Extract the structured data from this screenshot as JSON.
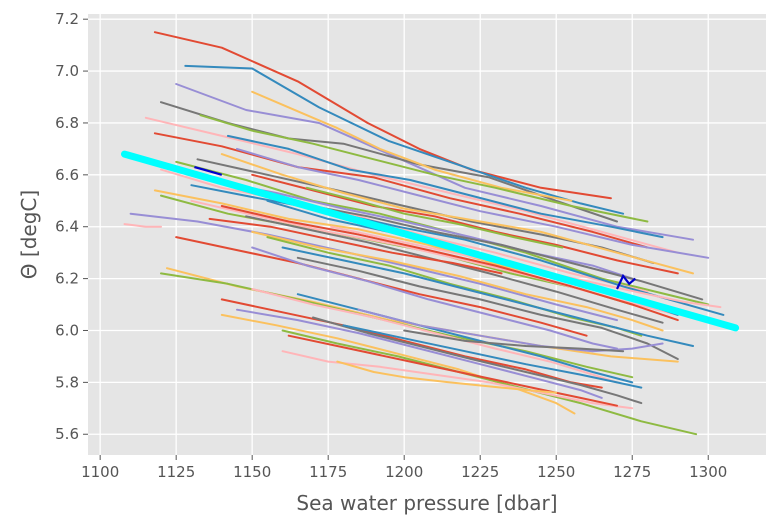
{
  "chart_data": {
    "type": "line",
    "title": "",
    "xlabel": "Sea water pressure [dbar]",
    "ylabel": "Θ [degC]",
    "xlim": [
      1096,
      1319
    ],
    "ylim": [
      5.52,
      7.22
    ],
    "xticks": [
      1100,
      1125,
      1150,
      1175,
      1200,
      1225,
      1250,
      1275,
      1300
    ],
    "yticks": [
      5.6,
      5.8,
      6.0,
      6.2,
      6.4,
      6.6,
      6.8,
      7.0,
      7.2
    ],
    "xtick_labels": [
      "1100",
      "1125",
      "1150",
      "1175",
      "1200",
      "1225",
      "1250",
      "1275",
      "1300"
    ],
    "ytick_labels": [
      "5.6",
      "5.8",
      "6.0",
      "6.2",
      "6.4",
      "6.6",
      "6.8",
      "7.0",
      "7.2"
    ],
    "grid": true,
    "style": "ggplot",
    "colors": {
      "background": "#e5e5e5",
      "grid": "#ffffff",
      "fit_line": "#00ffff",
      "highlight": "#0000cc",
      "cycle": [
        "#e24a33",
        "#348abd",
        "#988ed5",
        "#777777",
        "#fbc15e",
        "#8eba42",
        "#ffb5b8"
      ]
    },
    "fit_line": {
      "name": "",
      "x": [
        1108,
        1309
      ],
      "y": [
        6.68,
        6.01
      ]
    },
    "series": [
      {
        "x": [
          1118,
          1140,
          1165,
          1188,
          1205,
          1222,
          1245,
          1268
        ],
        "y": [
          7.15,
          7.09,
          6.96,
          6.8,
          6.7,
          6.62,
          6.55,
          6.51
        ]
      },
      {
        "x": [
          1128,
          1150,
          1172,
          1195,
          1220,
          1240,
          1258,
          1272
        ],
        "y": [
          7.02,
          7.01,
          6.86,
          6.73,
          6.63,
          6.55,
          6.49,
          6.45
        ]
      },
      {
        "x": [
          1125,
          1148,
          1172,
          1195,
          1220,
          1245,
          1270,
          1295
        ],
        "y": [
          6.95,
          6.85,
          6.8,
          6.68,
          6.55,
          6.48,
          6.4,
          6.35
        ]
      },
      {
        "x": [
          1120,
          1142,
          1162,
          1180,
          1205,
          1228,
          1250,
          1270
        ],
        "y": [
          6.88,
          6.8,
          6.74,
          6.72,
          6.64,
          6.59,
          6.5,
          6.42
        ]
      },
      {
        "x": [
          1150,
          1160,
          1170,
          1178,
          1192,
          1210,
          1232,
          1255
        ],
        "y": [
          6.92,
          6.87,
          6.82,
          6.78,
          6.7,
          6.62,
          6.55,
          6.5
        ]
      },
      {
        "x": [
          1133,
          1150,
          1170,
          1190,
          1210,
          1230,
          1255,
          1280
        ],
        "y": [
          6.83,
          6.77,
          6.72,
          6.66,
          6.6,
          6.55,
          6.48,
          6.42
        ]
      },
      {
        "x": [
          1115,
          1140,
          1165,
          1190,
          1215,
          1240,
          1265,
          1290
        ],
        "y": [
          6.82,
          6.75,
          6.68,
          6.6,
          6.53,
          6.46,
          6.38,
          6.3
        ]
      },
      {
        "x": [
          1118,
          1140,
          1165,
          1190,
          1215,
          1238,
          1262,
          1280
        ],
        "y": [
          6.76,
          6.71,
          6.63,
          6.59,
          6.51,
          6.45,
          6.38,
          6.32
        ]
      },
      {
        "x": [
          1142,
          1162,
          1182,
          1202,
          1222,
          1245,
          1268,
          1285
        ],
        "y": [
          6.75,
          6.7,
          6.62,
          6.58,
          6.52,
          6.45,
          6.4,
          6.36
        ]
      },
      {
        "x": [
          1145,
          1165,
          1185,
          1205,
          1225,
          1250,
          1275,
          1300
        ],
        "y": [
          6.7,
          6.63,
          6.58,
          6.52,
          6.46,
          6.4,
          6.33,
          6.28
        ]
      },
      {
        "x": [
          1132,
          1155,
          1178,
          1200,
          1222,
          1245,
          1265,
          1282
        ],
        "y": [
          6.66,
          6.6,
          6.54,
          6.48,
          6.42,
          6.37,
          6.32,
          6.26
        ]
      },
      {
        "x": [
          1140,
          1160,
          1180,
          1200,
          1220,
          1245,
          1270,
          1295
        ],
        "y": [
          6.68,
          6.6,
          6.53,
          6.47,
          6.43,
          6.38,
          6.3,
          6.22
        ]
      },
      {
        "x": [
          1125,
          1148,
          1170,
          1192,
          1215,
          1240,
          1265,
          1300
        ],
        "y": [
          6.65,
          6.58,
          6.5,
          6.45,
          6.38,
          6.3,
          6.2,
          6.1
        ]
      },
      {
        "x": [
          1120,
          1140,
          1162,
          1185,
          1208,
          1230,
          1255,
          1280
        ],
        "y": [
          6.62,
          6.55,
          6.5,
          6.44,
          6.36,
          6.3,
          6.22,
          6.15
        ]
      },
      {
        "x": [
          1150,
          1170,
          1190,
          1210,
          1230,
          1250,
          1270,
          1290
        ],
        "y": [
          6.6,
          6.54,
          6.48,
          6.44,
          6.38,
          6.33,
          6.27,
          6.22
        ]
      },
      {
        "x": [
          1130,
          1152,
          1175,
          1198,
          1220,
          1245,
          1272,
          1305
        ],
        "y": [
          6.56,
          6.51,
          6.46,
          6.4,
          6.35,
          6.27,
          6.17,
          6.06
        ]
      },
      {
        "x": [
          1135,
          1158,
          1180,
          1200,
          1222,
          1242,
          1262,
          1275
        ],
        "y": [
          6.58,
          6.53,
          6.47,
          6.42,
          6.36,
          6.3,
          6.25,
          6.2
        ]
      },
      {
        "x": [
          1145,
          1165,
          1188,
          1210,
          1232,
          1255,
          1278,
          1298
        ],
        "y": [
          6.55,
          6.49,
          6.44,
          6.38,
          6.33,
          6.26,
          6.19,
          6.12
        ]
      },
      {
        "x": [
          1118,
          1140,
          1162,
          1185,
          1208,
          1232,
          1258,
          1280
        ],
        "y": [
          6.54,
          6.49,
          6.43,
          6.39,
          6.33,
          6.25,
          6.18,
          6.1
        ]
      },
      {
        "x": [
          1120,
          1142,
          1165,
          1188,
          1210,
          1235,
          1258,
          1275
        ],
        "y": [
          6.52,
          6.45,
          6.4,
          6.35,
          6.3,
          6.22,
          6.16,
          6.1
        ]
      },
      {
        "x": [
          1130,
          1152,
          1175,
          1198,
          1220,
          1245,
          1270,
          1290
        ],
        "y": [
          6.5,
          6.44,
          6.38,
          6.33,
          6.27,
          6.2,
          6.12,
          6.06
        ]
      },
      {
        "x": [
          1140,
          1162,
          1185,
          1208,
          1230,
          1255,
          1275,
          1290
        ],
        "y": [
          6.48,
          6.42,
          6.37,
          6.31,
          6.25,
          6.17,
          6.1,
          6.04
        ]
      },
      {
        "x": [
          1155,
          1175,
          1195,
          1215,
          1235,
          1255,
          1275,
          1290
        ],
        "y": [
          6.5,
          6.43,
          6.38,
          6.32,
          6.26,
          6.2,
          6.12,
          6.06
        ]
      },
      {
        "x": [
          1110,
          1132,
          1155,
          1178,
          1200,
          1225,
          1250,
          1270
        ],
        "y": [
          6.45,
          6.42,
          6.37,
          6.31,
          6.25,
          6.18,
          6.1,
          6.04
        ]
      },
      {
        "x": [
          1148,
          1168,
          1188,
          1208,
          1228,
          1250,
          1270,
          1285
        ],
        "y": [
          6.44,
          6.39,
          6.34,
          6.28,
          6.22,
          6.15,
          6.08,
          6.03
        ]
      },
      {
        "x": [
          1150,
          1172,
          1195,
          1218,
          1240,
          1260,
          1275,
          1285
        ],
        "y": [
          6.38,
          6.32,
          6.27,
          6.21,
          6.14,
          6.09,
          6.04,
          6.0
        ]
      },
      {
        "x": [
          1155,
          1175,
          1195,
          1215,
          1235,
          1255,
          1270,
          1278
        ],
        "y": [
          6.36,
          6.3,
          6.25,
          6.18,
          6.12,
          6.05,
          6.01,
          5.98
        ]
      },
      {
        "x": [
          1108,
          1115,
          1120
        ],
        "y": [
          6.41,
          6.4,
          6.4
        ]
      },
      {
        "x": [
          1125,
          1145,
          1165,
          1185,
          1205,
          1225,
          1245,
          1260
        ],
        "y": [
          6.36,
          6.31,
          6.26,
          6.2,
          6.14,
          6.09,
          6.03,
          5.98
        ]
      },
      {
        "x": [
          1160,
          1180,
          1200,
          1220,
          1240,
          1260,
          1280,
          1295
        ],
        "y": [
          6.32,
          6.27,
          6.22,
          6.16,
          6.1,
          6.04,
          5.98,
          5.94
        ]
      },
      {
        "x": [
          1150,
          1168,
          1188,
          1208,
          1228,
          1248,
          1262,
          1270
        ],
        "y": [
          6.32,
          6.25,
          6.19,
          6.12,
          6.06,
          6.0,
          5.95,
          5.93
        ]
      },
      {
        "x": [
          1165,
          1185,
          1205,
          1225,
          1245,
          1265,
          1280,
          1290
        ],
        "y": [
          6.28,
          6.23,
          6.17,
          6.12,
          6.06,
          6.01,
          5.95,
          5.89
        ]
      },
      {
        "x": [
          1122,
          1145,
          1170,
          1195,
          1220,
          1245,
          1268,
          1290
        ],
        "y": [
          6.24,
          6.17,
          6.11,
          6.04,
          5.99,
          5.94,
          5.9,
          5.88
        ]
      },
      {
        "x": [
          1120,
          1142,
          1165,
          1190,
          1215,
          1240,
          1260,
          1275
        ],
        "y": [
          6.22,
          6.18,
          6.12,
          6.05,
          5.98,
          5.92,
          5.86,
          5.82
        ]
      },
      {
        "x": [
          1150,
          1170,
          1190,
          1210,
          1230,
          1248,
          1262,
          1270
        ],
        "y": [
          6.16,
          6.1,
          6.05,
          5.99,
          5.93,
          5.88,
          5.83,
          5.8
        ]
      },
      {
        "x": [
          1140,
          1160,
          1180,
          1200,
          1220,
          1240,
          1255,
          1265
        ],
        "y": [
          6.12,
          6.07,
          6.02,
          5.96,
          5.9,
          5.85,
          5.8,
          5.78
        ]
      },
      {
        "x": [
          1165,
          1185,
          1205,
          1225,
          1245,
          1262,
          1275
        ],
        "y": [
          6.14,
          6.08,
          6.02,
          5.96,
          5.9,
          5.84,
          5.8
        ]
      },
      {
        "x": [
          1145,
          1165,
          1185,
          1205,
          1225,
          1245,
          1258,
          1265
        ],
        "y": [
          6.08,
          6.04,
          5.99,
          5.93,
          5.87,
          5.81,
          5.77,
          5.74
        ]
      },
      {
        "x": [
          1170,
          1188,
          1205,
          1222,
          1240,
          1258,
          1270,
          1278
        ],
        "y": [
          6.05,
          5.99,
          5.94,
          5.89,
          5.84,
          5.79,
          5.75,
          5.72
        ]
      },
      {
        "x": [
          1140,
          1158,
          1178,
          1198,
          1218,
          1236,
          1250,
          1256
        ],
        "y": [
          6.06,
          6.02,
          5.97,
          5.91,
          5.85,
          5.78,
          5.72,
          5.68
        ]
      },
      {
        "x": [
          1160,
          1178,
          1198,
          1218,
          1238,
          1258,
          1278,
          1296
        ],
        "y": [
          6.0,
          5.95,
          5.9,
          5.84,
          5.78,
          5.72,
          5.65,
          5.6
        ]
      },
      {
        "x": [
          1160,
          1175,
          1192,
          1210,
          1228,
          1245,
          1262,
          1275
        ],
        "y": [
          5.92,
          5.88,
          5.86,
          5.83,
          5.8,
          5.76,
          5.72,
          5.7
        ]
      },
      {
        "x": [
          1162,
          1182,
          1202,
          1222,
          1242,
          1258,
          1270
        ],
        "y": [
          5.98,
          5.93,
          5.88,
          5.83,
          5.78,
          5.74,
          5.71
        ]
      },
      {
        "x": [
          1180,
          1200,
          1220,
          1240,
          1258,
          1270,
          1278
        ],
        "y": [
          6.02,
          5.97,
          5.92,
          5.87,
          5.83,
          5.8,
          5.78
        ]
      },
      {
        "x": [
          1185,
          1205,
          1225,
          1245,
          1262,
          1275,
          1285
        ],
        "y": [
          6.08,
          6.02,
          5.98,
          5.94,
          5.92,
          5.93,
          5.95
        ]
      },
      {
        "x": [
          1200,
          1220,
          1240,
          1258,
          1272
        ],
        "y": [
          6.0,
          5.96,
          5.94,
          5.93,
          5.92
        ]
      },
      {
        "x": [
          1178,
          1190,
          1200,
          1215,
          1232,
          1250
        ],
        "y": [
          5.88,
          5.84,
          5.82,
          5.8,
          5.78,
          5.76
        ]
      },
      {
        "x": [
          1168,
          1185,
          1200,
          1218,
          1236,
          1252
        ],
        "y": [
          6.55,
          6.5,
          6.45,
          6.41,
          6.36,
          6.32
        ]
      },
      {
        "x": [
          1176,
          1196,
          1216,
          1236,
          1256,
          1276,
          1292,
          1304
        ],
        "y": [
          6.4,
          6.35,
          6.3,
          6.25,
          6.2,
          6.15,
          6.11,
          6.09
        ]
      },
      {
        "x": [
          1136,
          1156,
          1176,
          1196,
          1216,
          1232
        ],
        "y": [
          6.43,
          6.4,
          6.35,
          6.3,
          6.26,
          6.22
        ]
      }
    ],
    "highlight_series": [
      {
        "x": [
          1131,
          1134,
          1137,
          1140
        ],
        "y": [
          6.63,
          6.62,
          6.61,
          6.6
        ]
      },
      {
        "x": [
          1270,
          1272,
          1274,
          1276
        ],
        "y": [
          6.16,
          6.21,
          6.18,
          6.2
        ]
      }
    ]
  }
}
